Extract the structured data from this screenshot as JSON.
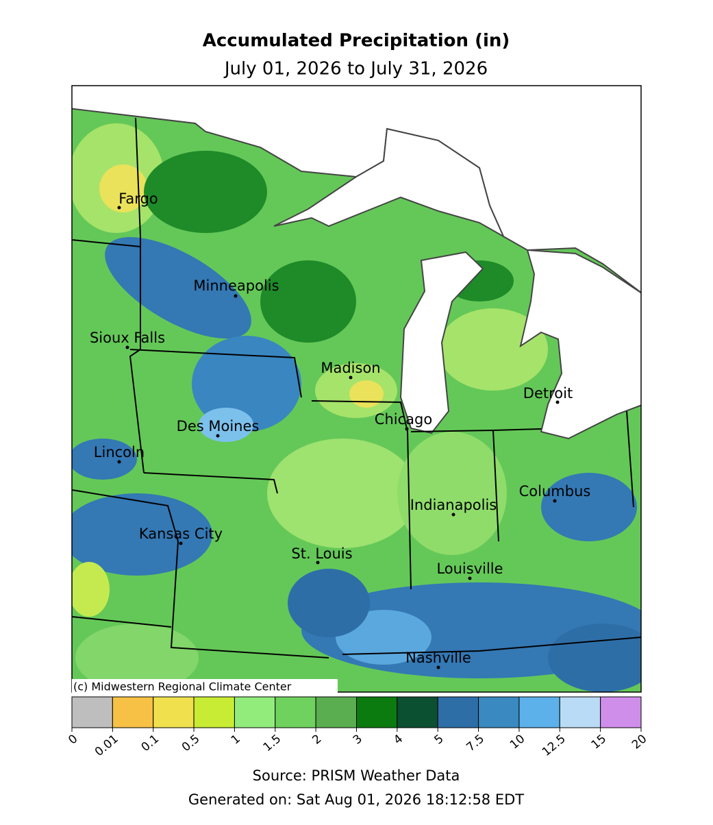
{
  "header": {
    "title": "Accumulated Precipitation (in)",
    "subtitle": "July 01, 2026 to July 31, 2026"
  },
  "map": {
    "copyright": "(c) Midwestern Regional Climate Center",
    "cities": [
      "Fargo",
      "Minneapolis",
      "Sioux Falls",
      "Madison",
      "Detroit",
      "Chicago",
      "Des Moines",
      "Lincoln",
      "Columbus",
      "Indianapolis",
      "Kansas City",
      "St. Louis",
      "Louisville",
      "Nashville"
    ]
  },
  "colorbar": {
    "ticks": [
      0,
      0.01,
      0.1,
      0.5,
      1,
      1.5,
      2,
      3,
      4,
      5,
      7.5,
      10,
      12.5,
      15,
      20
    ],
    "colors": [
      "#bebebe",
      "#f6c145",
      "#f0e04e",
      "#c8ec34",
      "#92ec7c",
      "#6fd25e",
      "#5aae50",
      "#0b7b10",
      "#0c5032",
      "#2e6ea7",
      "#3a89c0",
      "#5cb1ea",
      "#b9dbf5",
      "#d08eeb"
    ]
  },
  "footer": {
    "source": "Source: PRISM Weather Data",
    "generated": "Generated on: Sat Aug 01, 2026 18:12:58 EDT"
  }
}
